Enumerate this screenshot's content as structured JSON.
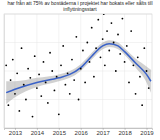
{
  "chart_data": {
    "type": "scatter",
    "title": "har från att 75% av bostäderna i projektet har bokats eller sålts till inflyttningsstart",
    "xlim": [
      2012.5,
      2019.25
    ],
    "xticks": [
      2013,
      2014,
      2015,
      2016,
      2017,
      2018,
      2019
    ],
    "ylim": [
      0,
      100
    ],
    "yticks": [
      0,
      25,
      50,
      75,
      100
    ],
    "grid": true,
    "tick_labels": "x",
    "series": [
      {
        "type": "scatter",
        "color": "#000000",
        "marker": "circle",
        "x": [
          2012.6,
          2012.7,
          2012.8,
          2012.9,
          2013.0,
          2013.1,
          2013.2,
          2013.3,
          2013.4,
          2013.5,
          2013.6,
          2013.7,
          2013.8,
          2013.9,
          2014.0,
          2014.1,
          2014.2,
          2014.3,
          2014.4,
          2014.5,
          2014.6,
          2014.7,
          2014.8,
          2014.9,
          2015.0,
          2015.1,
          2015.2,
          2015.3,
          2015.4,
          2015.5,
          2015.6,
          2015.7,
          2015.8,
          2015.9,
          2016.0,
          2016.1,
          2016.2,
          2016.3,
          2016.4,
          2016.5,
          2016.6,
          2016.7,
          2016.8,
          2016.9,
          2017.0,
          2017.05,
          2017.1,
          2017.2,
          2017.3,
          2017.4,
          2017.5,
          2017.6,
          2017.7,
          2017.8,
          2017.9,
          2018.0,
          2018.1,
          2018.2,
          2018.3,
          2018.4,
          2018.5,
          2018.6,
          2018.7,
          2018.8,
          2018.9,
          2019.0,
          2019.1
        ],
        "values": [
          55,
          20,
          42,
          60,
          30,
          48,
          15,
          70,
          38,
          25,
          52,
          44,
          10,
          63,
          35,
          47,
          28,
          58,
          40,
          22,
          66,
          50,
          33,
          45,
          12,
          55,
          72,
          38,
          48,
          30,
          60,
          42,
          80,
          25,
          52,
          68,
          40,
          75,
          58,
          88,
          45,
          70,
          95,
          62,
          78,
          100,
          55,
          85,
          68,
          92,
          75,
          50,
          82,
          65,
          96,
          58,
          72,
          40,
          85,
          55,
          30,
          62,
          45,
          20,
          70,
          50,
          35
        ]
      },
      {
        "type": "line",
        "color": "#3a62c8",
        "line_style": "solid",
        "x": [
          2012.6,
          2013,
          2014,
          2015,
          2015.5,
          2016,
          2016.5,
          2017,
          2017.3,
          2017.7,
          2018,
          2018.5,
          2019,
          2019.2
        ],
        "values": [
          31,
          34,
          40,
          44,
          47,
          53,
          63,
          72,
          74,
          72,
          67,
          57,
          47,
          41
        ],
        "band_lower": [
          21,
          27,
          36,
          41,
          44,
          50,
          60,
          69,
          71,
          69,
          64,
          53,
          40,
          31
        ],
        "band_upper": [
          41,
          41,
          44,
          47,
          50,
          56,
          66,
          75,
          77,
          75,
          70,
          61,
          54,
          51
        ]
      }
    ]
  }
}
